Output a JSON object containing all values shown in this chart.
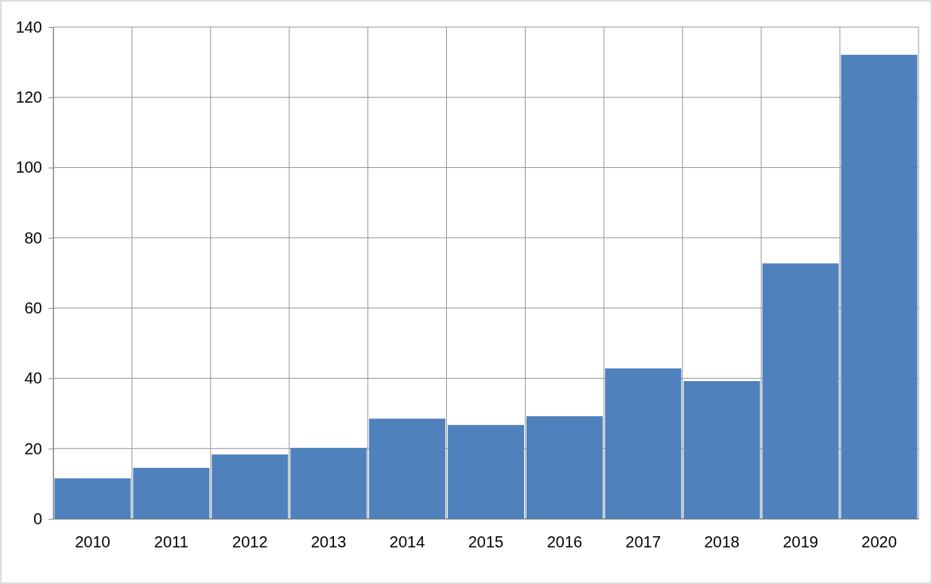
{
  "chart_data": {
    "type": "bar",
    "categories": [
      "2010",
      "2011",
      "2012",
      "2013",
      "2014",
      "2015",
      "2016",
      "2017",
      "2018",
      "2019",
      "2020"
    ],
    "values": [
      11.5,
      14.5,
      18.3,
      20.2,
      28.5,
      26.7,
      29.2,
      42.8,
      39.2,
      72.7,
      132.1
    ],
    "color": "#4f81bd",
    "ylim": [
      0,
      140
    ],
    "yticks": [
      0,
      20,
      40,
      60,
      80,
      100,
      120,
      140
    ],
    "grid": true
  }
}
